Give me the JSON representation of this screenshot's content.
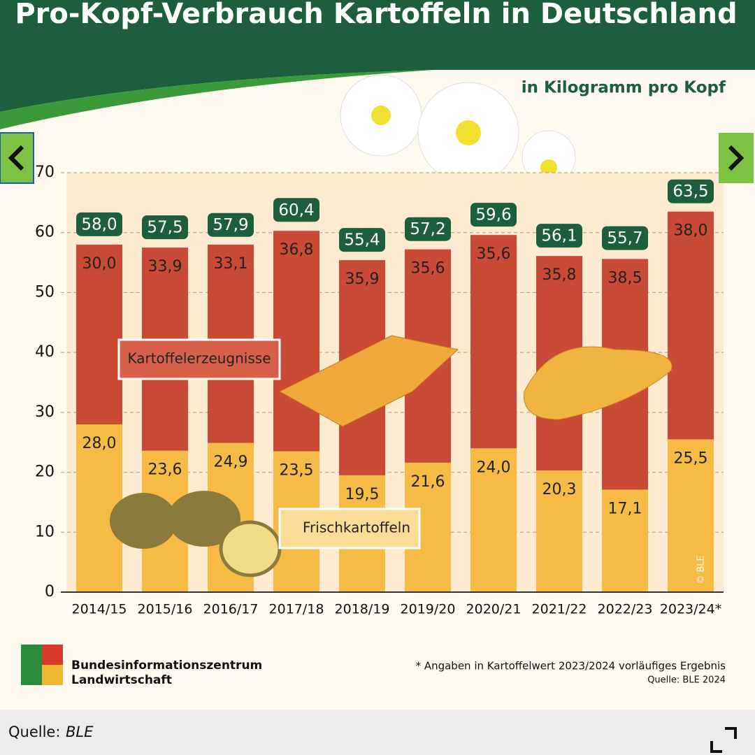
{
  "chart_data": {
    "type": "stacked_bar",
    "title": "Pro-Kopf-Verbrauch Kartoffeln in Deutschland",
    "subtitle": "in Kilogramm pro Kopf",
    "categories": [
      "2014/15",
      "2015/16",
      "2016/17",
      "2017/18",
      "2018/19",
      "2019/20",
      "2020/21",
      "2021/22",
      "2022/23",
      "2023/24*"
    ],
    "series": [
      {
        "name": "Frischkartoffeln",
        "color": "#f5bb45",
        "values": [
          28.0,
          23.6,
          24.9,
          23.5,
          19.5,
          21.6,
          24.0,
          20.3,
          17.1,
          25.5
        ],
        "value_labels": [
          "28,0",
          "23,6",
          "24,9",
          "23,5",
          "19,5",
          "21,6",
          "24,0",
          "20,3",
          "17,1",
          "25,5"
        ]
      },
      {
        "name": "Kartoffelerzeugnisse",
        "color": "#c94a35",
        "values": [
          30.0,
          33.9,
          33.1,
          36.8,
          35.9,
          35.6,
          35.6,
          35.8,
          38.5,
          38.0
        ],
        "value_labels": [
          "30,0",
          "33,9",
          "33,1",
          "36,8",
          "35,9",
          "35,6",
          "35,6",
          "35,8",
          "38,5",
          "38,0"
        ]
      }
    ],
    "totals": {
      "color": "#1d5e3c",
      "values": [
        58.0,
        57.5,
        57.9,
        60.4,
        55.4,
        57.2,
        59.6,
        56.1,
        55.7,
        63.5
      ],
      "value_labels": [
        "58,0",
        "57,5",
        "57,9",
        "60,4",
        "55,4",
        "57,2",
        "59,6",
        "56,1",
        "55,7",
        "63,5"
      ]
    },
    "ylim": [
      0,
      70
    ],
    "yticks": [
      0,
      10,
      20,
      30,
      40,
      50,
      60,
      70
    ],
    "grid": true,
    "watermark": "© BLE",
    "footnote": "* Angaben in Kartoffelwert 2023/2024 vorläufiges Ergebnis",
    "source": "Quelle: BLE 2024",
    "logo": [
      "Bundesinformationszentrum",
      "Landwirtschaft"
    ]
  },
  "caption": {
    "label": "Quelle:",
    "source": "BLE"
  }
}
